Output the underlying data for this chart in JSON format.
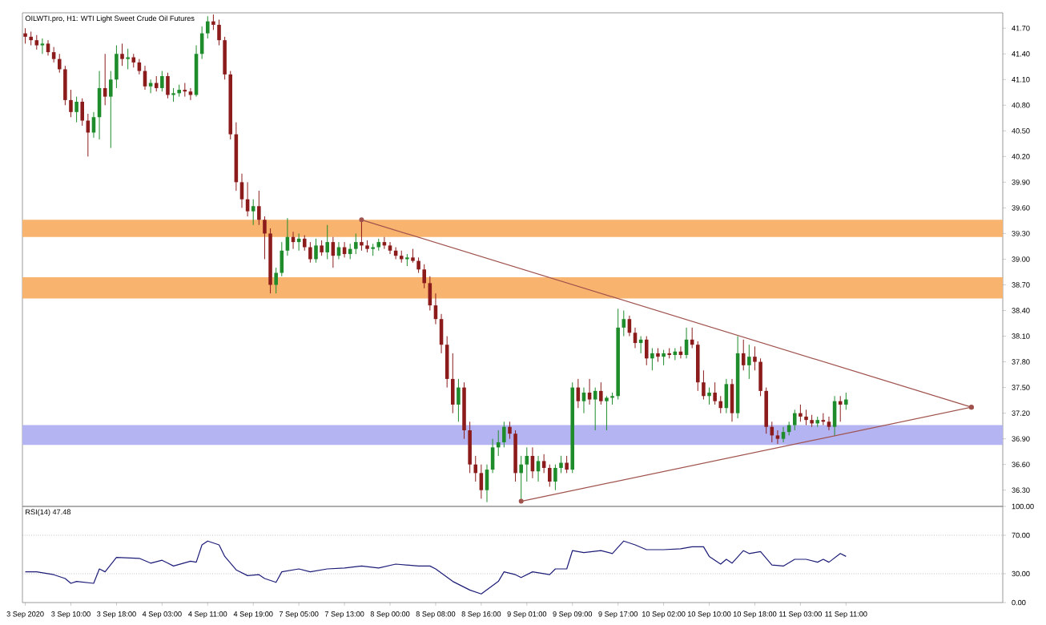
{
  "chart_data": [
    {
      "type": "candlestick",
      "title": "OILWTI.pro, H1: WTI Light Sweet Crude Oil Futures",
      "categories": [
        null,
        null,
        null,
        null,
        null,
        null,
        null,
        null,
        null,
        null,
        null,
        null,
        null,
        null,
        null,
        null,
        null,
        null,
        null,
        null,
        null,
        null,
        null,
        null,
        null,
        null,
        null,
        null,
        null,
        null,
        null,
        null,
        null,
        null,
        null,
        null,
        null,
        null,
        null,
        null,
        null,
        null,
        null,
        null,
        null,
        null,
        null,
        null,
        null,
        null,
        null,
        null,
        null,
        null,
        null,
        null,
        null,
        null,
        null,
        null,
        null,
        null,
        null,
        null,
        null,
        null,
        null,
        null,
        null,
        null,
        null,
        null,
        null,
        null,
        null,
        null,
        null,
        null,
        null,
        null,
        null,
        null,
        null,
        null,
        null,
        null,
        null,
        null,
        null,
        null,
        null,
        null,
        null,
        null,
        null,
        null,
        null,
        null,
        null,
        null,
        null,
        null,
        null,
        null,
        null,
        null,
        null,
        null,
        null,
        null,
        null,
        null,
        null,
        null,
        null,
        null,
        null,
        null,
        null,
        null,
        null,
        null,
        null,
        null,
        null,
        null,
        null,
        null,
        null,
        null,
        null,
        null,
        null,
        null,
        null,
        null,
        null,
        null,
        null,
        null,
        null,
        null,
        null,
        null,
        null,
        null,
        null,
        null,
        null,
        null,
        null,
        null,
        null,
        null,
        null,
        null,
        null,
        null,
        null,
        null,
        null,
        null,
        null,
        null,
        null,
        null,
        null,
        null,
        null,
        null,
        null,
        null
      ],
      "ohlc": [
        [
          41.64,
          41.7,
          41.52,
          41.6
        ],
        [
          41.6,
          41.66,
          41.5,
          41.56
        ],
        [
          41.56,
          41.62,
          41.45,
          41.5
        ],
        [
          41.5,
          41.58,
          41.4,
          41.52
        ],
        [
          41.52,
          41.56,
          41.38,
          41.42
        ],
        [
          41.42,
          41.48,
          41.3,
          41.34
        ],
        [
          41.34,
          41.4,
          41.18,
          41.22
        ],
        [
          41.22,
          41.26,
          40.8,
          40.86
        ],
        [
          40.86,
          40.98,
          40.66,
          40.72
        ],
        [
          40.72,
          40.9,
          40.6,
          40.84
        ],
        [
          40.84,
          40.88,
          40.56,
          40.62
        ],
        [
          40.62,
          40.7,
          40.2,
          40.48
        ],
        [
          40.48,
          40.72,
          40.42,
          40.66
        ],
        [
          40.66,
          41.2,
          40.4,
          41.0
        ],
        [
          41.0,
          41.4,
          40.8,
          40.9
        ],
        [
          40.9,
          41.2,
          40.3,
          41.1
        ],
        [
          41.1,
          41.5,
          41.0,
          41.4
        ],
        [
          41.4,
          41.52,
          41.26,
          41.34
        ],
        [
          41.34,
          41.46,
          41.22,
          41.36
        ],
        [
          41.36,
          41.4,
          41.24,
          41.3
        ],
        [
          41.3,
          41.34,
          41.16,
          41.2
        ],
        [
          41.2,
          41.26,
          40.98,
          41.02
        ],
        [
          41.02,
          41.1,
          40.94,
          41.06
        ],
        [
          41.06,
          41.14,
          40.96,
          41.0
        ],
        [
          41.0,
          41.2,
          40.96,
          41.14
        ],
        [
          41.14,
          41.18,
          40.88,
          40.92
        ],
        [
          40.92,
          41.0,
          40.84,
          40.94
        ],
        [
          40.94,
          41.04,
          40.9,
          40.98
        ],
        [
          40.98,
          41.06,
          40.9,
          40.96
        ],
        [
          40.96,
          41.0,
          40.86,
          40.92
        ],
        [
          40.92,
          41.5,
          40.9,
          41.4
        ],
        [
          41.4,
          41.72,
          41.34,
          41.64
        ],
        [
          41.64,
          41.84,
          41.58,
          41.78
        ],
        [
          41.78,
          41.86,
          41.68,
          41.74
        ],
        [
          41.74,
          41.8,
          41.5,
          41.56
        ],
        [
          41.56,
          41.6,
          41.1,
          41.16
        ],
        [
          41.16,
          41.2,
          40.4,
          40.46
        ],
        [
          40.46,
          40.6,
          39.8,
          39.9
        ],
        [
          39.9,
          40.0,
          39.6,
          39.7
        ],
        [
          39.7,
          39.9,
          39.5,
          39.56
        ],
        [
          39.56,
          39.7,
          39.4,
          39.62
        ],
        [
          39.62,
          39.8,
          39.4,
          39.46
        ],
        [
          39.46,
          39.5,
          39.0,
          39.3
        ],
        [
          39.3,
          39.36,
          38.6,
          38.7
        ],
        [
          38.7,
          38.9,
          38.6,
          38.84
        ],
        [
          38.84,
          39.2,
          38.8,
          39.1
        ],
        [
          39.1,
          39.48,
          39.04,
          39.26
        ],
        [
          39.26,
          39.32,
          39.12,
          39.2
        ],
        [
          39.2,
          39.3,
          39.1,
          39.24
        ],
        [
          39.24,
          39.28,
          39.1,
          39.14
        ],
        [
          39.14,
          39.2,
          38.96,
          39.0
        ],
        [
          39.0,
          39.24,
          38.96,
          39.16
        ],
        [
          39.16,
          39.22,
          39.04,
          39.08
        ],
        [
          39.08,
          39.4,
          39.0,
          39.2
        ],
        [
          39.2,
          39.26,
          38.9,
          39.04
        ],
        [
          39.04,
          39.2,
          39.0,
          39.14
        ],
        [
          39.14,
          39.2,
          39.02,
          39.06
        ],
        [
          39.06,
          39.18,
          39.0,
          39.12
        ],
        [
          39.12,
          39.3,
          39.06,
          39.2
        ],
        [
          39.2,
          39.46,
          39.1,
          39.16
        ],
        [
          39.16,
          39.22,
          39.08,
          39.12
        ],
        [
          39.12,
          39.18,
          39.04,
          39.14
        ],
        [
          39.14,
          39.24,
          39.1,
          39.2
        ],
        [
          39.2,
          39.26,
          39.12,
          39.16
        ],
        [
          39.16,
          39.2,
          39.06,
          39.1
        ],
        [
          39.1,
          39.14,
          39.0,
          39.04
        ],
        [
          39.04,
          39.1,
          38.96,
          39.0
        ],
        [
          39.0,
          39.06,
          38.92,
          39.02
        ],
        [
          39.02,
          39.12,
          38.96,
          38.98
        ],
        [
          38.98,
          39.02,
          38.84,
          38.88
        ],
        [
          38.88,
          38.94,
          38.66,
          38.72
        ],
        [
          38.72,
          38.8,
          38.4,
          38.46
        ],
        [
          38.46,
          38.6,
          38.24,
          38.3
        ],
        [
          38.3,
          38.36,
          37.9,
          38.0
        ],
        [
          38.0,
          38.1,
          37.5,
          37.6
        ],
        [
          37.6,
          37.9,
          37.2,
          37.3
        ],
        [
          37.3,
          37.6,
          37.1,
          37.5
        ],
        [
          37.5,
          37.56,
          36.9,
          37.0
        ],
        [
          37.0,
          37.1,
          36.5,
          36.6
        ],
        [
          36.6,
          36.7,
          36.4,
          36.5
        ],
        [
          36.5,
          36.6,
          36.2,
          36.3
        ],
        [
          36.3,
          36.6,
          36.16,
          36.54
        ],
        [
          36.54,
          36.9,
          36.5,
          36.8
        ],
        [
          36.8,
          37.0,
          36.7,
          36.86
        ],
        [
          36.86,
          37.1,
          36.8,
          37.04
        ],
        [
          37.04,
          37.1,
          36.9,
          36.96
        ],
        [
          36.96,
          37.0,
          36.4,
          36.5
        ],
        [
          36.5,
          36.7,
          36.17,
          36.6
        ],
        [
          36.6,
          36.8,
          36.4,
          36.7
        ],
        [
          36.7,
          36.8,
          36.44,
          36.52
        ],
        [
          36.52,
          36.7,
          36.4,
          36.64
        ],
        [
          36.64,
          36.72,
          36.5,
          36.56
        ],
        [
          36.56,
          36.6,
          36.34,
          36.4
        ],
        [
          36.4,
          36.6,
          36.3,
          36.56
        ],
        [
          36.56,
          36.7,
          36.5,
          36.62
        ],
        [
          36.62,
          36.7,
          36.5,
          36.54
        ],
        [
          36.54,
          37.56,
          36.5,
          37.5
        ],
        [
          37.5,
          37.6,
          37.26,
          37.34
        ],
        [
          37.34,
          37.5,
          37.2,
          37.44
        ],
        [
          37.44,
          37.6,
          37.3,
          37.36
        ],
        [
          37.36,
          37.5,
          37.0,
          37.46
        ],
        [
          37.46,
          37.56,
          37.3,
          37.34
        ],
        [
          37.34,
          37.4,
          37.0,
          37.38
        ],
        [
          37.38,
          37.44,
          37.3,
          37.4
        ],
        [
          37.4,
          38.42,
          37.36,
          38.2
        ],
        [
          38.2,
          38.4,
          38.1,
          38.3
        ],
        [
          38.3,
          38.34,
          38.1,
          38.14
        ],
        [
          38.14,
          38.2,
          37.96,
          38.02
        ],
        [
          38.02,
          38.1,
          37.9,
          38.06
        ],
        [
          38.06,
          38.1,
          37.76,
          37.84
        ],
        [
          37.84,
          37.96,
          37.7,
          37.9
        ],
        [
          37.9,
          37.96,
          37.8,
          37.86
        ],
        [
          37.86,
          37.94,
          37.76,
          37.9
        ],
        [
          37.9,
          37.96,
          37.84,
          37.88
        ],
        [
          37.88,
          37.96,
          37.82,
          37.92
        ],
        [
          37.92,
          37.98,
          37.84,
          37.88
        ],
        [
          37.88,
          38.2,
          37.84,
          38.06
        ],
        [
          38.06,
          38.2,
          37.96,
          38.0
        ],
        [
          38.0,
          38.04,
          37.46,
          37.56
        ],
        [
          37.56,
          37.7,
          37.36,
          37.4
        ],
        [
          37.4,
          37.5,
          37.3,
          37.44
        ],
        [
          37.44,
          37.56,
          37.3,
          37.34
        ],
        [
          37.34,
          37.4,
          37.2,
          37.26
        ],
        [
          37.26,
          37.6,
          37.2,
          37.54
        ],
        [
          37.54,
          37.6,
          37.1,
          37.2
        ],
        [
          37.2,
          38.1,
          37.14,
          37.9
        ],
        [
          37.9,
          38.06,
          37.7,
          37.76
        ],
        [
          37.76,
          38.0,
          37.6,
          37.86
        ],
        [
          37.86,
          37.98,
          37.7,
          37.8
        ],
        [
          37.8,
          37.84,
          37.4,
          37.46
        ],
        [
          37.46,
          37.5,
          36.96,
          37.04
        ],
        [
          37.04,
          37.1,
          36.86,
          36.94
        ],
        [
          36.94,
          37.0,
          36.84,
          36.9
        ],
        [
          36.9,
          37.04,
          36.86,
          36.98
        ],
        [
          36.98,
          37.1,
          36.94,
          37.06
        ],
        [
          37.06,
          37.24,
          37.0,
          37.2
        ],
        [
          37.2,
          37.3,
          37.1,
          37.16
        ],
        [
          37.16,
          37.24,
          37.06,
          37.12
        ],
        [
          37.12,
          37.18,
          37.04,
          37.08
        ],
        [
          37.08,
          37.16,
          37.04,
          37.12
        ],
        [
          37.12,
          37.2,
          37.06,
          37.1
        ],
        [
          37.1,
          37.16,
          37.0,
          37.04
        ],
        [
          37.04,
          37.4,
          36.94,
          37.34
        ],
        [
          37.34,
          37.4,
          37.1,
          37.3
        ],
        [
          37.3,
          37.44,
          37.24,
          37.36
        ],
        null,
        null,
        null,
        null,
        null,
        null,
        null,
        null,
        null,
        null,
        null,
        null,
        null,
        null,
        null,
        null,
        null,
        null,
        null,
        null,
        null,
        null,
        null,
        null,
        null,
        null,
        null
      ],
      "series": [
        {
          "type": "line",
          "color": "#a0524d",
          "marker": "circle",
          "values": [
            null,
            null,
            null,
            null,
            null,
            null,
            null,
            null,
            null,
            null,
            null,
            null,
            null,
            null,
            null,
            null,
            null,
            null,
            null,
            null,
            null,
            null,
            null,
            null,
            null,
            null,
            null,
            null,
            null,
            null,
            null,
            null,
            null,
            null,
            null,
            null,
            null,
            null,
            null,
            null,
            null,
            null,
            null,
            null,
            null,
            null,
            null,
            null,
            null,
            null,
            null,
            null,
            null,
            null,
            null,
            null,
            null,
            null,
            null,
            39.46,
            null,
            null,
            null,
            null,
            null,
            null,
            null,
            null,
            null,
            null,
            null,
            null,
            null,
            null,
            null,
            null,
            null,
            null,
            null,
            null,
            null,
            null,
            null,
            null,
            null,
            null,
            null,
            null,
            null,
            null,
            null,
            null,
            null,
            null,
            null,
            null,
            null,
            null,
            null,
            null,
            null,
            null,
            null,
            null,
            null,
            null,
            null,
            null,
            null,
            null,
            null,
            null,
            null,
            null,
            null,
            null,
            null,
            null,
            null,
            null,
            null,
            null,
            null,
            null,
            null,
            null,
            null,
            null,
            null,
            null,
            null,
            null,
            null,
            null,
            null,
            null,
            null,
            null,
            null,
            null,
            null,
            null,
            null,
            null,
            null,
            null,
            null,
            null,
            null,
            null,
            null,
            null,
            null,
            null,
            null,
            null,
            null,
            null,
            null,
            null,
            null,
            null,
            null,
            null,
            null,
            null,
            37.27,
            null,
            null,
            null,
            null,
            null
          ]
        },
        {
          "type": "line",
          "color": "#a0524d",
          "marker": "circle",
          "values": [
            null,
            null,
            null,
            null,
            null,
            null,
            null,
            null,
            null,
            null,
            null,
            null,
            null,
            null,
            null,
            null,
            null,
            null,
            null,
            null,
            null,
            null,
            null,
            null,
            null,
            null,
            null,
            null,
            null,
            null,
            null,
            null,
            null,
            null,
            null,
            null,
            null,
            null,
            null,
            null,
            null,
            null,
            null,
            null,
            null,
            null,
            null,
            null,
            null,
            null,
            null,
            null,
            null,
            null,
            null,
            null,
            null,
            null,
            null,
            null,
            null,
            null,
            null,
            null,
            null,
            null,
            null,
            null,
            null,
            null,
            null,
            null,
            null,
            null,
            null,
            null,
            null,
            null,
            null,
            null,
            null,
            null,
            null,
            null,
            null,
            null,
            null,
            36.17,
            null,
            null,
            null,
            null,
            null,
            null,
            null,
            null,
            null,
            null,
            null,
            null,
            null,
            null,
            null,
            null,
            null,
            null,
            null,
            null,
            null,
            null,
            null,
            null,
            null,
            null,
            null,
            null,
            null,
            null,
            null,
            null,
            null,
            null,
            null,
            null,
            null,
            null,
            null,
            null,
            null,
            null,
            null,
            null,
            null,
            null,
            null,
            null,
            null,
            null,
            null,
            null,
            null,
            null,
            null,
            null,
            null,
            null,
            null,
            null,
            null,
            null,
            null,
            null,
            null,
            null,
            null,
            null,
            null,
            null,
            null,
            null,
            null,
            null,
            null,
            null,
            null,
            null,
            37.27,
            null,
            null,
            null,
            null,
            null
          ]
        }
      ],
      "bands": [
        {
          "axis": "y",
          "from": 39.26,
          "to": 39.46,
          "color": "#f8b46e"
        },
        {
          "axis": "y",
          "from": 38.54,
          "to": 38.79,
          "color": "#f8b46e"
        },
        {
          "axis": "y",
          "from": 36.83,
          "to": 37.06,
          "color": "#b4b4f2"
        }
      ],
      "ylim": [
        36.11,
        41.88
      ],
      "yticks": [
        {
          "value": 41.7,
          "label": "41.70"
        },
        {
          "value": 41.4,
          "label": "41.40"
        },
        {
          "value": 41.1,
          "label": "41.10"
        },
        {
          "value": 40.8,
          "label": "40.80"
        },
        {
          "value": 40.5,
          "label": "40.50"
        },
        {
          "value": 40.2,
          "label": "40.20"
        },
        {
          "value": 39.9,
          "label": "39.90"
        },
        {
          "value": 39.6,
          "label": "39.60"
        },
        {
          "value": 39.3,
          "label": "39.30"
        },
        {
          "value": 39.0,
          "label": "39.00"
        },
        {
          "value": 38.7,
          "label": "38.70"
        },
        {
          "value": 38.4,
          "label": "38.40"
        },
        {
          "value": 38.1,
          "label": "38.10"
        },
        {
          "value": 37.8,
          "label": "37.80"
        },
        {
          "value": 37.5,
          "label": "37.50"
        },
        {
          "value": 37.2,
          "label": "37.20"
        },
        {
          "value": 36.9,
          "label": "36.90"
        },
        {
          "value": 36.6,
          "label": "36.60"
        },
        {
          "value": 36.3,
          "label": "36.30"
        }
      ],
      "tick_labels": "y"
    },
    {
      "type": "line",
      "title": "RSI(14) 47.48",
      "categories": [
        "3 Sep 2020",
        null,
        null,
        null,
        null,
        null,
        null,
        null,
        "3 Sep 10:00",
        null,
        null,
        null,
        null,
        null,
        null,
        null,
        "3 Sep 18:00",
        null,
        null,
        null,
        null,
        null,
        null,
        null,
        "4 Sep 03:00",
        null,
        null,
        null,
        null,
        null,
        null,
        null,
        "4 Sep 11:00",
        null,
        null,
        null,
        null,
        null,
        null,
        null,
        "4 Sep 19:00",
        null,
        null,
        null,
        null,
        null,
        null,
        null,
        "7 Sep 05:00",
        null,
        null,
        null,
        null,
        null,
        null,
        null,
        "7 Sep 13:00",
        null,
        null,
        null,
        null,
        null,
        null,
        null,
        "8 Sep 00:00",
        null,
        null,
        null,
        null,
        null,
        null,
        null,
        "8 Sep 08:00",
        null,
        null,
        null,
        null,
        null,
        null,
        null,
        "8 Sep 16:00",
        null,
        null,
        null,
        null,
        null,
        null,
        null,
        "9 Sep 01:00",
        null,
        null,
        null,
        null,
        null,
        null,
        null,
        "9 Sep 09:00",
        null,
        null,
        null,
        null,
        null,
        null,
        null,
        "9 Sep 17:00",
        null,
        null,
        null,
        null,
        null,
        null,
        null,
        "10 Sep 02:00",
        null,
        null,
        null,
        null,
        null,
        null,
        null,
        "10 Sep 10:00",
        null,
        null,
        null,
        null,
        null,
        null,
        null,
        "10 Sep 18:00",
        null,
        null,
        null,
        null,
        null,
        null,
        null,
        "11 Sep 03:00",
        null,
        null,
        null,
        null,
        null,
        null,
        null,
        "11 Sep 11:00",
        null,
        null,
        null,
        null,
        null,
        null,
        null,
        null,
        null,
        null,
        null,
        null,
        null,
        null,
        null,
        null,
        null,
        null,
        null,
        null,
        null,
        null,
        null,
        null,
        null,
        null,
        null
      ],
      "series": [
        {
          "color": "#1c1c78",
          "values": [
            32,
            null,
            32,
            null,
            null,
            29,
            null,
            25,
            20,
            22,
            null,
            null,
            20,
            35,
            32,
            null,
            47,
            null,
            null,
            null,
            46,
            null,
            41,
            null,
            44,
            41,
            38,
            null,
            null,
            43,
            42,
            60,
            64,
            null,
            60,
            48,
            null,
            34,
            null,
            28,
            null,
            29,
            25,
            null,
            21,
            32,
            null,
            null,
            35,
            null,
            32,
            null,
            null,
            35,
            null,
            null,
            36,
            null,
            null,
            38,
            null,
            null,
            36,
            null,
            null,
            40,
            null,
            null,
            null,
            38,
            null,
            38,
            35,
            null,
            null,
            22,
            null,
            null,
            13,
            null,
            9,
            null,
            null,
            22,
            32,
            null,
            29,
            26,
            null,
            32,
            null,
            null,
            29,
            35,
            null,
            35,
            54,
            null,
            52,
            null,
            null,
            54,
            null,
            51,
            null,
            64,
            null,
            60,
            null,
            55,
            null,
            null,
            55,
            null,
            null,
            56,
            null,
            58,
            null,
            58,
            48,
            null,
            40,
            45,
            41,
            null,
            54,
            51,
            null,
            53,
            null,
            39,
            null,
            38,
            null,
            45,
            null,
            45,
            null,
            42,
            45,
            42,
            null,
            51,
            48,
            null,
            null,
            null,
            null,
            null,
            null,
            null,
            null,
            null,
            null,
            null,
            null,
            null,
            null,
            null,
            null,
            null,
            null,
            null,
            null,
            null,
            null,
            null,
            null,
            null,
            null,
            null
          ]
        }
      ],
      "ylim": [
        0,
        100
      ],
      "yticks": [
        {
          "value": 100,
          "label": "100.00"
        },
        {
          "value": 70,
          "label": "70.00"
        },
        {
          "value": 30,
          "label": "30.00"
        },
        {
          "value": 0,
          "label": "0.00"
        }
      ],
      "ref_lines": [
        {
          "axis": "y",
          "value": 70,
          "color": "#a0a0a0",
          "line_style": "dotted"
        },
        {
          "axis": "y",
          "value": 30,
          "color": "#a0a0a0",
          "line_style": "dotted"
        }
      ]
    }
  ]
}
